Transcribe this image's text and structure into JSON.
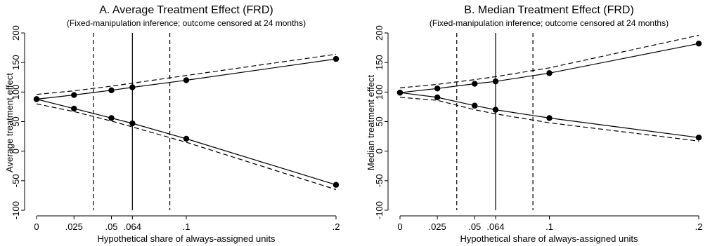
{
  "chart_data": [
    {
      "type": "line",
      "title": "A. Average Treatment Effect (FRD)",
      "subtitle": "(Fixed-manipulation inference; outcome censored at 24 months)",
      "xlabel": "Hypothetical share of always-assigned units",
      "ylabel": "Average treatment effect",
      "xlim": [
        0,
        0.2
      ],
      "ylim": [
        -100,
        200
      ],
      "xticks": [
        0,
        0.025,
        0.05,
        0.064,
        0.1,
        0.2
      ],
      "xtick_labels": [
        "0",
        ".025",
        ".05",
        ".064",
        ".1",
        ".2"
      ],
      "yticks": [
        -100,
        -50,
        0,
        50,
        100,
        150,
        200
      ],
      "ytick_labels": [
        "-100",
        "-50",
        "0",
        "50",
        "100",
        "150",
        "200"
      ],
      "grid": false,
      "vlines": [
        {
          "x": 0.064,
          "style": "solid"
        },
        {
          "x": 0.038,
          "style": "dashed"
        },
        {
          "x": 0.089,
          "style": "dashed"
        }
      ],
      "series": [
        {
          "role": "upper-bound",
          "style": "solid",
          "markers": true,
          "x": [
            0,
            0.025,
            0.05,
            0.064,
            0.1,
            0.2
          ],
          "y": [
            88,
            95,
            103,
            108,
            120,
            156
          ]
        },
        {
          "role": "lower-bound",
          "style": "solid",
          "markers": true,
          "x": [
            0,
            0.025,
            0.05,
            0.064,
            0.1,
            0.2
          ],
          "y": [
            88,
            72,
            56,
            47,
            21,
            -57
          ]
        },
        {
          "role": "upper-ci",
          "style": "dashed",
          "markers": false,
          "x": [
            0,
            0.025,
            0.05,
            0.064,
            0.1,
            0.2
          ],
          "y": [
            96,
            102,
            110,
            115,
            128,
            164
          ]
        },
        {
          "role": "lower-ci",
          "style": "dashed",
          "markers": false,
          "x": [
            0,
            0.025,
            0.05,
            0.064,
            0.1,
            0.2
          ],
          "y": [
            80,
            67,
            51,
            41,
            15,
            -65
          ]
        }
      ]
    },
    {
      "type": "line",
      "title": "B. Median Treatment Effect (FRD)",
      "subtitle": "(Fixed-manipulation inference; outcome censored at 24 months)",
      "xlabel": "Hypothetical share of always-assigned units",
      "ylabel": "Median treatment effect",
      "xlim": [
        0,
        0.2
      ],
      "ylim": [
        -100,
        200
      ],
      "xticks": [
        0,
        0.025,
        0.05,
        0.064,
        0.1,
        0.2
      ],
      "xtick_labels": [
        "0",
        ".025",
        ".05",
        ".064",
        ".1",
        ".2"
      ],
      "yticks": [
        -100,
        -50,
        0,
        50,
        100,
        150,
        200
      ],
      "ytick_labels": [
        "-100",
        "-50",
        "0",
        "50",
        "100",
        "150",
        "200"
      ],
      "grid": false,
      "vlines": [
        {
          "x": 0.064,
          "style": "solid"
        },
        {
          "x": 0.038,
          "style": "dashed"
        },
        {
          "x": 0.089,
          "style": "dashed"
        }
      ],
      "series": [
        {
          "role": "upper-bound",
          "style": "solid",
          "markers": true,
          "x": [
            0,
            0.025,
            0.05,
            0.064,
            0.1,
            0.2
          ],
          "y": [
            99,
            106,
            114,
            118,
            132,
            182
          ]
        },
        {
          "role": "lower-bound",
          "style": "solid",
          "markers": true,
          "x": [
            0,
            0.025,
            0.05,
            0.064,
            0.1,
            0.2
          ],
          "y": [
            99,
            91,
            77,
            70,
            56,
            23
          ]
        },
        {
          "role": "upper-ci",
          "style": "dashed",
          "markers": false,
          "x": [
            0,
            0.025,
            0.05,
            0.064,
            0.1,
            0.2
          ],
          "y": [
            107,
            113,
            121,
            126,
            141,
            196
          ]
        },
        {
          "role": "lower-ci",
          "style": "dashed",
          "markers": false,
          "x": [
            0,
            0.025,
            0.05,
            0.064,
            0.1,
            0.2
          ],
          "y": [
            91,
            86,
            70,
            63,
            48,
            17
          ]
        }
      ]
    }
  ]
}
